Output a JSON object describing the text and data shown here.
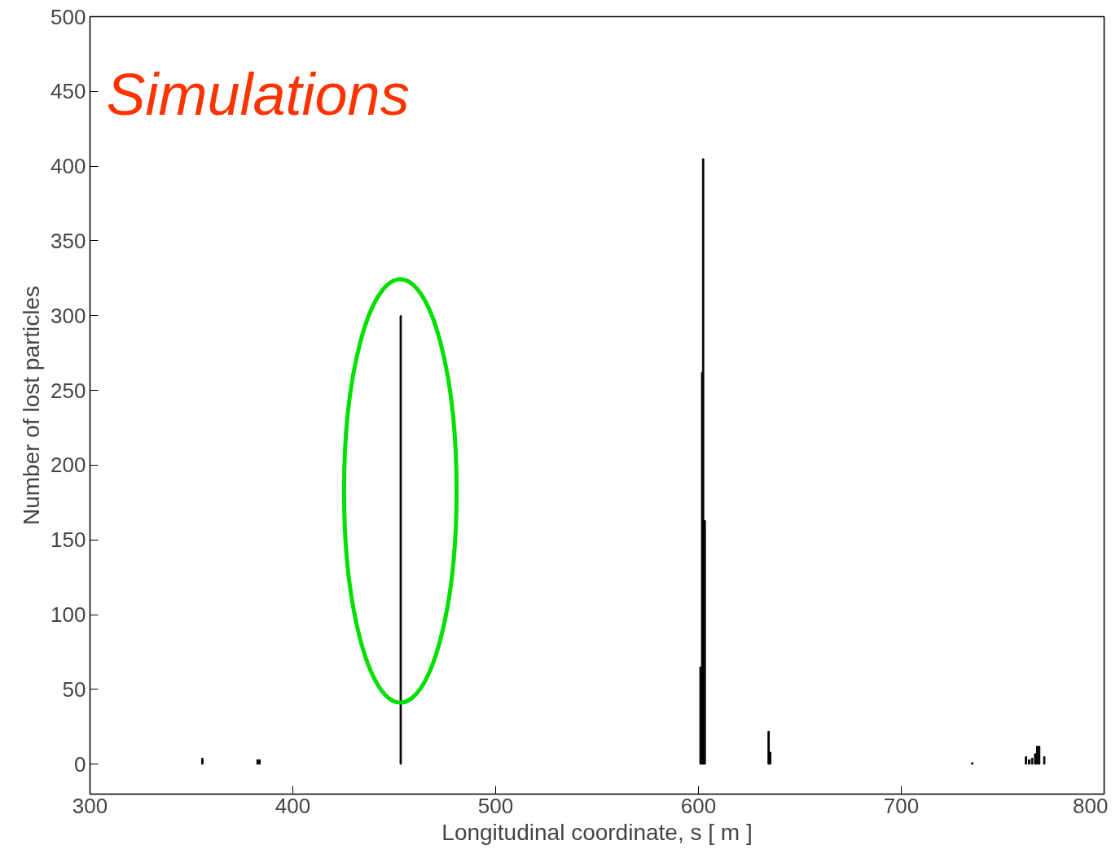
{
  "chart_data": {
    "type": "bar",
    "xlabel": "Longitudinal coordinate, s [ m ]",
    "ylabel": "Number of lost particles",
    "annotations": [
      "Simulations"
    ],
    "x": [
      355.4,
      382.6,
      383.6,
      453.2,
      601.0,
      601.8,
      602.3,
      603.1,
      634.6,
      635.4,
      735.0,
      761.5,
      763.0,
      764.5,
      766.0,
      767.0,
      768.0,
      770.5
    ],
    "series": [
      {
        "color": "#000000",
        "values": [
          4,
          3,
          3,
          300,
          65,
          262,
          405,
          163,
          22,
          8,
          1,
          5,
          3,
          4,
          7,
          12,
          12,
          5
        ]
      }
    ],
    "xlim": [
      300,
      800
    ],
    "xticks": [
      300,
      400,
      500,
      600,
      700,
      800
    ],
    "ylim": [
      -20,
      500
    ],
    "yticks": [
      0,
      50,
      100,
      150,
      200,
      250,
      300,
      350,
      400,
      450,
      500
    ],
    "grid": false
  }
}
